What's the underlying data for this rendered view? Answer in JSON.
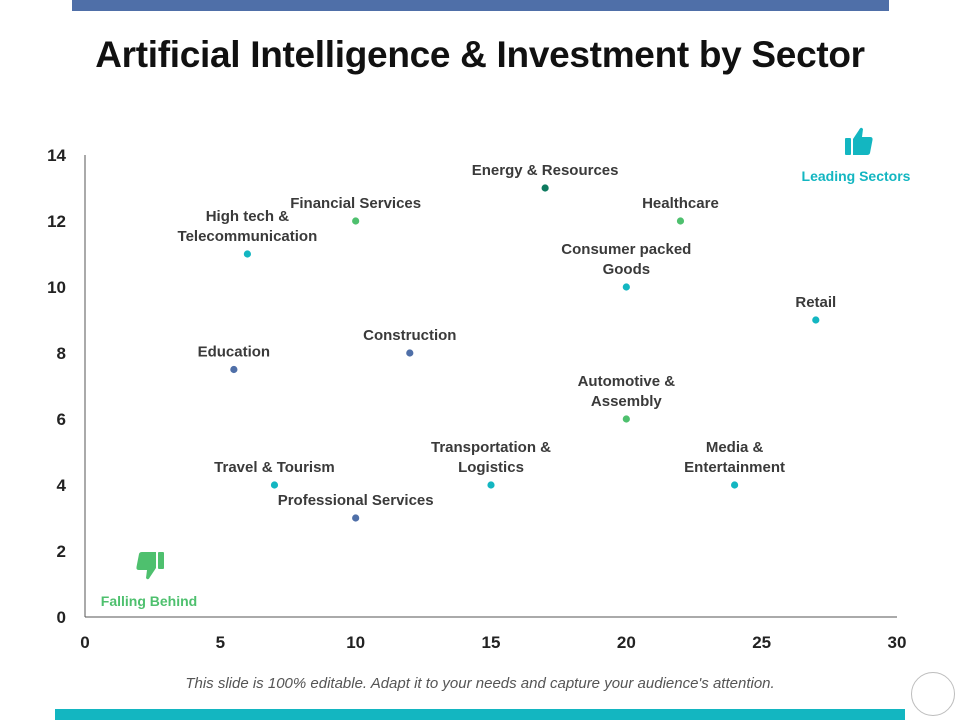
{
  "title": "Artificial Intelligence & Investment by Sector",
  "footer": "This slide is 100% editable. Adapt it to your needs and capture your audience's attention.",
  "colors": {
    "top_bar": "#4f6fa8",
    "bottom_bar": "#13b6c1",
    "teal": "#13b6c1",
    "green": "#4ec06e",
    "dark_green": "#0e7a5f",
    "blue": "#4f6fa8"
  },
  "annotations": {
    "leading": {
      "label": "Leading Sectors",
      "icon": "thumbs-up-icon",
      "color": "#13b6c1"
    },
    "falling": {
      "label": "Falling Behind",
      "icon": "thumbs-down-icon",
      "color": "#4ec06e"
    }
  },
  "chart_data": {
    "type": "scatter",
    "title": "Artificial Intelligence & Investment by Sector",
    "xlim": [
      0,
      30
    ],
    "ylim": [
      0,
      14
    ],
    "xticks": [
      0,
      5,
      10,
      15,
      20,
      25,
      30
    ],
    "yticks": [
      0,
      2,
      4,
      6,
      8,
      10,
      12,
      14
    ],
    "grid": false,
    "points": [
      {
        "label": [
          "Energy & Resources"
        ],
        "x": 17,
        "y": 13,
        "color": "#0e7a5f"
      },
      {
        "label": [
          "Financial Services"
        ],
        "x": 10,
        "y": 12,
        "color": "#4ec06e"
      },
      {
        "label": [
          "Healthcare"
        ],
        "x": 22,
        "y": 12,
        "color": "#4ec06e"
      },
      {
        "label": [
          "High tech &",
          "Telecommunication"
        ],
        "x": 6,
        "y": 11,
        "color": "#13b6c1"
      },
      {
        "label": [
          "Consumer packed",
          "Goods"
        ],
        "x": 20,
        "y": 10,
        "color": "#13b6c1"
      },
      {
        "label": [
          "Retail"
        ],
        "x": 27,
        "y": 9,
        "color": "#13b6c1"
      },
      {
        "label": [
          "Construction"
        ],
        "x": 12,
        "y": 8,
        "color": "#4f6fa8"
      },
      {
        "label": [
          "Education"
        ],
        "x": 5.5,
        "y": 7.5,
        "color": "#4f6fa8"
      },
      {
        "label": [
          "Automotive &",
          "Assembly"
        ],
        "x": 20,
        "y": 6,
        "color": "#4ec06e"
      },
      {
        "label": [
          "Transportation &",
          "Logistics"
        ],
        "x": 15,
        "y": 4,
        "color": "#13b6c1"
      },
      {
        "label": [
          "Media &",
          "Entertainment"
        ],
        "x": 24,
        "y": 4,
        "color": "#13b6c1"
      },
      {
        "label": [
          "Travel & Tourism"
        ],
        "x": 7,
        "y": 4,
        "color": "#13b6c1"
      },
      {
        "label": [
          "Professional Services"
        ],
        "x": 10,
        "y": 3,
        "color": "#4f6fa8"
      }
    ]
  }
}
